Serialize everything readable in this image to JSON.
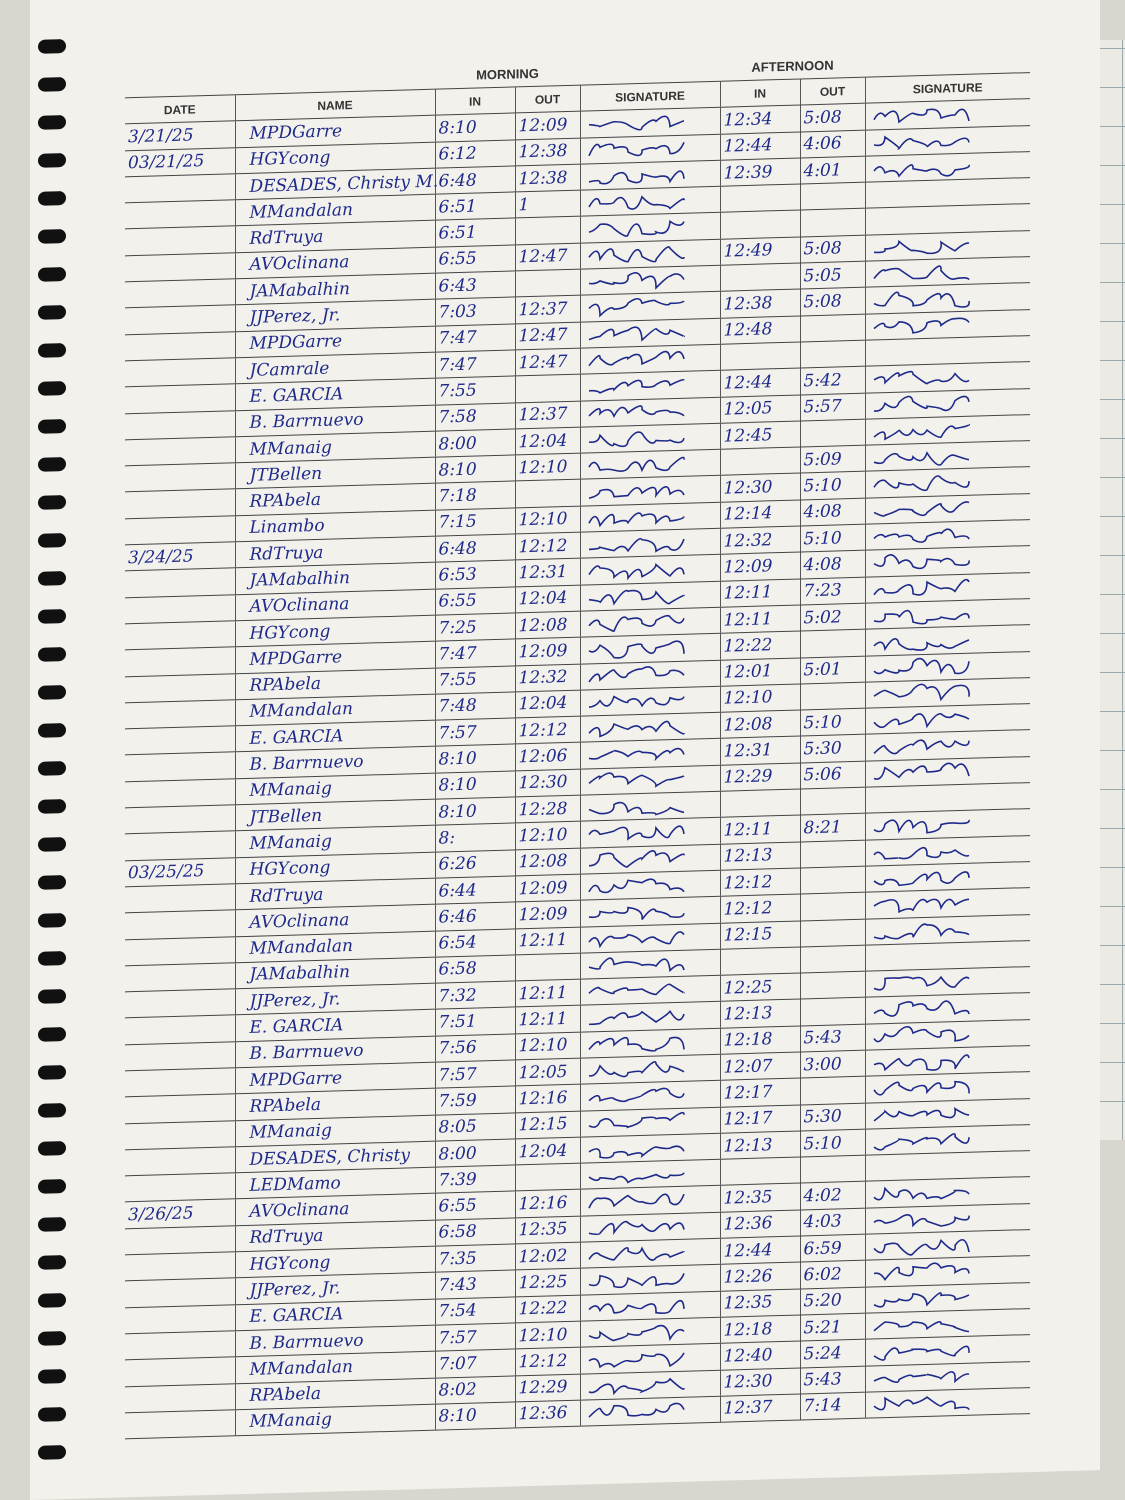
{
  "headers": {
    "date": "DATE",
    "name": "NAME",
    "morning": "MORNING",
    "afternoon": "AFTERNOON",
    "in": "IN",
    "out": "OUT",
    "signature": "SIGNATURE"
  },
  "colors": {
    "ink": "#1e2a8a",
    "paper": "#f3f1ec",
    "rule": "#444444"
  },
  "rows": [
    {
      "date": "3/21/25",
      "name": "MPDGarre",
      "am_in": "8:10",
      "am_out": "12:09",
      "pm_in": "12:34",
      "pm_out": "5:08"
    },
    {
      "date": "03/21/25",
      "name": "HGYcong",
      "am_in": "6:12",
      "am_out": "12:38",
      "pm_in": "12:44",
      "pm_out": "4:06"
    },
    {
      "date": "",
      "name": "DESADES, Christy M.",
      "am_in": "6:48",
      "am_out": "12:38",
      "pm_in": "12:39",
      "pm_out": "4:01"
    },
    {
      "date": "",
      "name": "MMandalan",
      "am_in": "6:51",
      "am_out": "1",
      "pm_in": "",
      "pm_out": ""
    },
    {
      "date": "",
      "name": "RdTruya",
      "am_in": "6:51",
      "am_out": "",
      "pm_in": "",
      "pm_out": ""
    },
    {
      "date": "",
      "name": "AVOclinana",
      "am_in": "6:55",
      "am_out": "12:47",
      "pm_in": "12:49",
      "pm_out": "5:08"
    },
    {
      "date": "",
      "name": "JAMabalhin",
      "am_in": "6:43",
      "am_out": "",
      "pm_in": "",
      "pm_out": "5:05"
    },
    {
      "date": "",
      "name": "JJPerez, Jr.",
      "am_in": "7:03",
      "am_out": "12:37",
      "pm_in": "12:38",
      "pm_out": "5:08"
    },
    {
      "date": "",
      "name": "MPDGarre",
      "am_in": "7:47",
      "am_out": "12:47",
      "pm_in": "12:48",
      "pm_out": ""
    },
    {
      "date": "",
      "name": "JCamrale",
      "am_in": "7:47",
      "am_out": "12:47",
      "pm_in": "",
      "pm_out": ""
    },
    {
      "date": "",
      "name": "E. GARCIA",
      "am_in": "7:55",
      "am_out": "",
      "pm_in": "12:44",
      "pm_out": "5:42"
    },
    {
      "date": "",
      "name": "B. Barrnuevo",
      "am_in": "7:58",
      "am_out": "12:37",
      "pm_in": "12:05",
      "pm_out": "5:57"
    },
    {
      "date": "",
      "name": "MManaig",
      "am_in": "8:00",
      "am_out": "12:04",
      "pm_in": "12:45",
      "pm_out": ""
    },
    {
      "date": "",
      "name": "JTBellen",
      "am_in": "8:10",
      "am_out": "12:10",
      "pm_in": "",
      "pm_out": "5:09"
    },
    {
      "date": "",
      "name": "RPAbela",
      "am_in": "7:18",
      "am_out": "",
      "pm_in": "12:30",
      "pm_out": "5:10"
    },
    {
      "date": "",
      "name": "Linambo",
      "am_in": "7:15",
      "am_out": "12:10",
      "pm_in": "12:14",
      "pm_out": "4:08"
    },
    {
      "date": "3/24/25",
      "name": "RdTruya",
      "am_in": "6:48",
      "am_out": "12:12",
      "pm_in": "12:32",
      "pm_out": "5:10"
    },
    {
      "date": "",
      "name": "JAMabalhin",
      "am_in": "6:53",
      "am_out": "12:31",
      "pm_in": "12:09",
      "pm_out": "4:08"
    },
    {
      "date": "",
      "name": "AVOclinana",
      "am_in": "6:55",
      "am_out": "12:04",
      "pm_in": "12:11",
      "pm_out": "7:23"
    },
    {
      "date": "",
      "name": "HGYcong",
      "am_in": "7:25",
      "am_out": "12:08",
      "pm_in": "12:11",
      "pm_out": "5:02"
    },
    {
      "date": "",
      "name": "MPDGarre",
      "am_in": "7:47",
      "am_out": "12:09",
      "pm_in": "12:22",
      "pm_out": ""
    },
    {
      "date": "",
      "name": "RPAbela",
      "am_in": "7:55",
      "am_out": "12:32",
      "pm_in": "12:01",
      "pm_out": "5:01"
    },
    {
      "date": "",
      "name": "MMandalan",
      "am_in": "7:48",
      "am_out": "12:04",
      "pm_in": "12:10",
      "pm_out": ""
    },
    {
      "date": "",
      "name": "E. GARCIA",
      "am_in": "7:57",
      "am_out": "12:12",
      "pm_in": "12:08",
      "pm_out": "5:10"
    },
    {
      "date": "",
      "name": "B. Barrnuevo",
      "am_in": "8:10",
      "am_out": "12:06",
      "pm_in": "12:31",
      "pm_out": "5:30"
    },
    {
      "date": "",
      "name": "MManaig",
      "am_in": "8:10",
      "am_out": "12:30",
      "pm_in": "12:29",
      "pm_out": "5:06"
    },
    {
      "date": "",
      "name": "JTBellen",
      "am_in": "8:10",
      "am_out": "12:28",
      "pm_in": "",
      "pm_out": ""
    },
    {
      "date": "",
      "name": "MManaig",
      "am_in": "8:",
      "am_out": "12:10",
      "pm_in": "12:11",
      "pm_out": "8:21"
    },
    {
      "date": "03/25/25",
      "name": "HGYcong",
      "am_in": "6:26",
      "am_out": "12:08",
      "pm_in": "12:13",
      "pm_out": ""
    },
    {
      "date": "",
      "name": "RdTruya",
      "am_in": "6:44",
      "am_out": "12:09",
      "pm_in": "12:12",
      "pm_out": ""
    },
    {
      "date": "",
      "name": "AVOclinana",
      "am_in": "6:46",
      "am_out": "12:09",
      "pm_in": "12:12",
      "pm_out": ""
    },
    {
      "date": "",
      "name": "MMandalan",
      "am_in": "6:54",
      "am_out": "12:11",
      "pm_in": "12:15",
      "pm_out": ""
    },
    {
      "date": "",
      "name": "JAMabalhin",
      "am_in": "6:58",
      "am_out": "",
      "pm_in": "",
      "pm_out": ""
    },
    {
      "date": "",
      "name": "JJPerez, Jr.",
      "am_in": "7:32",
      "am_out": "12:11",
      "pm_in": "12:25",
      "pm_out": ""
    },
    {
      "date": "",
      "name": "E. GARCIA",
      "am_in": "7:51",
      "am_out": "12:11",
      "pm_in": "12:13",
      "pm_out": ""
    },
    {
      "date": "",
      "name": "B. Barrnuevo",
      "am_in": "7:56",
      "am_out": "12:10",
      "pm_in": "12:18",
      "pm_out": "5:43"
    },
    {
      "date": "",
      "name": "MPDGarre",
      "am_in": "7:57",
      "am_out": "12:05",
      "pm_in": "12:07",
      "pm_out": "3:00"
    },
    {
      "date": "",
      "name": "RPAbela",
      "am_in": "7:59",
      "am_out": "12:16",
      "pm_in": "12:17",
      "pm_out": ""
    },
    {
      "date": "",
      "name": "MManaig",
      "am_in": "8:05",
      "am_out": "12:15",
      "pm_in": "12:17",
      "pm_out": "5:30"
    },
    {
      "date": "",
      "name": "DESADES, Christy",
      "am_in": "8:00",
      "am_out": "12:04",
      "pm_in": "12:13",
      "pm_out": "5:10"
    },
    {
      "date": "",
      "name": "LEDMamo",
      "am_in": "7:39",
      "am_out": "",
      "pm_in": "",
      "pm_out": ""
    },
    {
      "date": "3/26/25",
      "name": "AVOclinana",
      "am_in": "6:55",
      "am_out": "12:16",
      "pm_in": "12:35",
      "pm_out": "4:02"
    },
    {
      "date": "",
      "name": "RdTruya",
      "am_in": "6:58",
      "am_out": "12:35",
      "pm_in": "12:36",
      "pm_out": "4:03"
    },
    {
      "date": "",
      "name": "HGYcong",
      "am_in": "7:35",
      "am_out": "12:02",
      "pm_in": "12:44",
      "pm_out": "6:59"
    },
    {
      "date": "",
      "name": "JJPerez, Jr.",
      "am_in": "7:43",
      "am_out": "12:25",
      "pm_in": "12:26",
      "pm_out": "6:02"
    },
    {
      "date": "",
      "name": "E. GARCIA",
      "am_in": "7:54",
      "am_out": "12:22",
      "pm_in": "12:35",
      "pm_out": "5:20"
    },
    {
      "date": "",
      "name": "B. Barrnuevo",
      "am_in": "7:57",
      "am_out": "12:10",
      "pm_in": "12:18",
      "pm_out": "5:21"
    },
    {
      "date": "",
      "name": "MMandalan",
      "am_in": "7:07",
      "am_out": "12:12",
      "pm_in": "12:40",
      "pm_out": "5:24"
    },
    {
      "date": "",
      "name": "RPAbela",
      "am_in": "8:02",
      "am_out": "12:29",
      "pm_in": "12:30",
      "pm_out": "5:43"
    },
    {
      "date": "",
      "name": "MManaig",
      "am_in": "8:10",
      "am_out": "12:36",
      "pm_in": "12:37",
      "pm_out": "7:14"
    }
  ]
}
